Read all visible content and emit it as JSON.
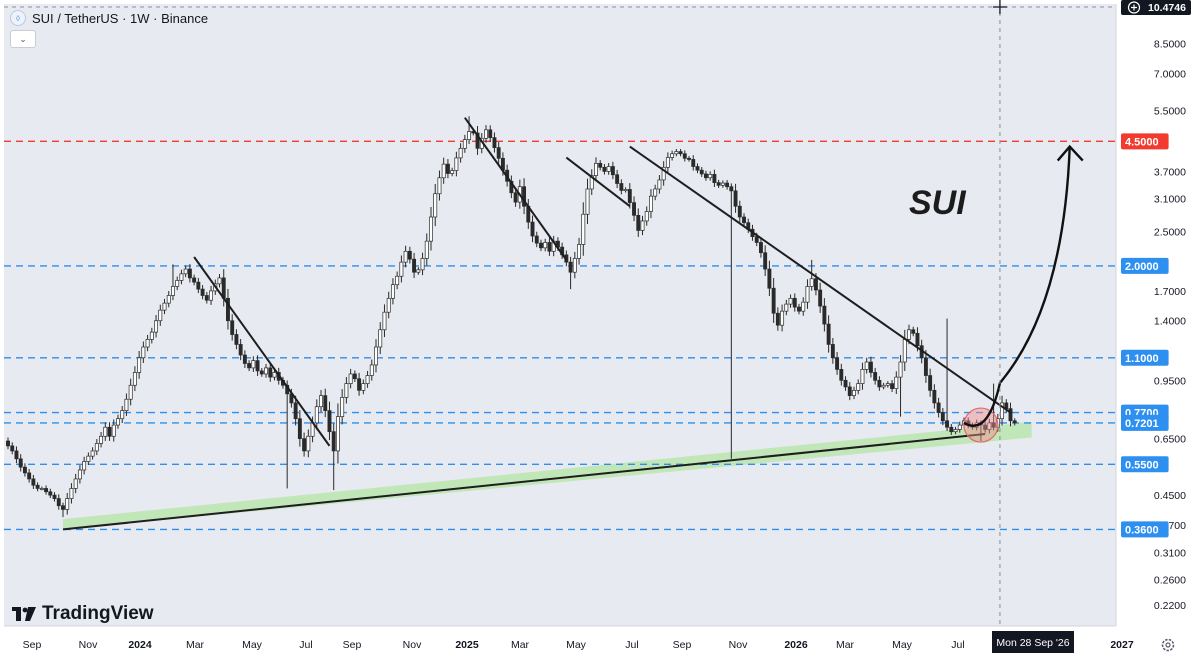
{
  "header": {
    "symbol_line": "SUI / TetherUS · 1W · Binance",
    "collapse_glyph": "⌄"
  },
  "watermark": {
    "brand": "TradingView",
    "logo_glyph": "17"
  },
  "colors": {
    "background": "#e7eaf0",
    "bull_candle_body": "#ffffff",
    "bear_candle_body": "#2a2a2a",
    "wick": "#2a2a2a",
    "blue_level": "#2d8ff0",
    "red_level": "#f23a2e",
    "green_zone": "#bfe6b3",
    "trendline": "#1e1e1e",
    "highlight_circle": "#f28b8b"
  },
  "chart_data": {
    "type": "candlestick",
    "title": "SUI / TetherUS · 1W · Binance",
    "annotation_text": "SUI",
    "y_scale": "log",
    "ylim": [
      0.192,
      11.0
    ],
    "y_ticks": [
      "10.4746",
      "8.5000",
      "7.0000",
      "5.5000",
      "3.7000",
      "3.1000",
      "2.5000",
      "1.7000",
      "1.4000",
      "0.9500",
      "0.6500",
      "0.4500",
      "0.3700",
      "0.3100",
      "0.2600",
      "0.2200"
    ],
    "x_ticks": [
      "Sep",
      "Nov",
      "2024",
      "Mar",
      "May",
      "Jul",
      "Sep",
      "Nov",
      "2025",
      "Mar",
      "May",
      "Jul",
      "Sep",
      "Nov",
      "2026",
      "Mar",
      "May",
      "Jul",
      "Mon 28 Sep '26",
      "2027"
    ],
    "x_tick_bold": [
      "2024",
      "2025",
      "2026",
      "2027"
    ],
    "cursor_x_label": "Mon 28 Sep '26",
    "cursor_y_label": "10.4746",
    "price_levels": [
      {
        "label": "4.5000",
        "value": 4.5,
        "color": "red"
      },
      {
        "label": "2.0000",
        "value": 2.0,
        "color": "blue"
      },
      {
        "label": "1.1000",
        "value": 1.1,
        "color": "blue"
      },
      {
        "label": "0.7700",
        "value": 0.77,
        "color": "blue"
      },
      {
        "label": "0.7201",
        "value": 0.7201,
        "color": "blue"
      },
      {
        "label": "0.5500",
        "value": 0.55,
        "color": "blue"
      },
      {
        "label": "0.3600",
        "value": 0.36,
        "color": "blue"
      }
    ],
    "candle_closes": [
      0.62,
      0.6,
      0.57,
      0.54,
      0.52,
      0.5,
      0.48,
      0.47,
      0.47,
      0.46,
      0.45,
      0.44,
      0.42,
      0.41,
      0.44,
      0.47,
      0.5,
      0.53,
      0.56,
      0.58,
      0.6,
      0.63,
      0.66,
      0.7,
      0.66,
      0.71,
      0.74,
      0.78,
      0.84,
      0.92,
      1.0,
      1.1,
      1.18,
      1.24,
      1.3,
      1.4,
      1.5,
      1.57,
      1.65,
      1.75,
      1.82,
      1.9,
      1.96,
      1.85,
      1.8,
      1.72,
      1.65,
      1.6,
      1.7,
      1.78,
      1.85,
      1.62,
      1.4,
      1.28,
      1.2,
      1.12,
      1.06,
      1.03,
      1.08,
      1.01,
      0.99,
      1.03,
      0.97,
      1.0,
      0.95,
      0.92,
      0.87,
      0.82,
      0.74,
      0.65,
      0.6,
      0.66,
      0.72,
      0.8,
      0.86,
      0.78,
      0.68,
      0.6,
      0.75,
      0.85,
      0.93,
      0.99,
      0.96,
      0.89,
      0.93,
      0.98,
      1.05,
      1.18,
      1.32,
      1.48,
      1.62,
      1.77,
      1.87,
      2.05,
      2.2,
      2.09,
      1.92,
      1.95,
      2.1,
      2.35,
      2.75,
      3.2,
      3.55,
      3.88,
      3.65,
      3.72,
      4.04,
      4.3,
      4.55,
      4.8,
      4.75,
      4.3,
      4.59,
      4.85,
      4.61,
      4.32,
      4.03,
      3.73,
      3.47,
      3.22,
      3.03,
      3.35,
      2.95,
      2.66,
      2.43,
      2.32,
      2.25,
      2.33,
      2.2,
      2.35,
      2.26,
      2.15,
      2.05,
      1.92,
      2.1,
      2.3,
      2.8,
      3.3,
      3.6,
      3.9,
      3.8,
      3.7,
      3.82,
      3.62,
      3.42,
      3.27,
      3.29,
      3.02,
      2.78,
      2.52,
      2.68,
      2.85,
      3.15,
      3.3,
      3.5,
      3.8,
      4.05,
      4.15,
      4.21,
      4.15,
      4.03,
      4.0,
      3.82,
      3.73,
      3.64,
      3.55,
      3.63,
      3.44,
      3.38,
      3.43,
      3.35,
      3.26,
      2.95,
      2.75,
      2.65,
      2.54,
      2.42,
      2.33,
      2.18,
      1.96,
      1.73,
      1.47,
      1.36,
      1.49,
      1.56,
      1.62,
      1.53,
      1.49,
      1.58,
      1.75,
      1.84,
      1.71,
      1.54,
      1.37,
      1.2,
      1.1,
      1.02,
      0.95,
      0.91,
      0.86,
      0.89,
      0.93,
      1.02,
      1.07,
      1.0,
      0.95,
      0.91,
      0.92,
      0.93,
      0.9,
      0.97,
      1.07,
      1.24,
      1.32,
      1.29,
      1.19,
      1.1,
      0.98,
      0.89,
      0.82,
      0.77,
      0.73,
      0.7,
      0.68,
      0.69,
      0.71,
      0.73,
      0.71,
      0.7,
      0.72,
      0.71,
      0.69,
      0.72,
      0.7,
      0.74,
      0.82,
      0.79,
      0.73,
      0.72
    ],
    "trendlines": [
      {
        "from": {
          "week": 13,
          "price": 0.36
        },
        "to": {
          "week": 231,
          "price": 0.67
        }
      },
      {
        "from": {
          "week": 44,
          "price": 2.12
        },
        "to": {
          "week": 76,
          "price": 0.62
        }
      },
      {
        "from": {
          "week": 108,
          "price": 5.25
        },
        "to": {
          "week": 132,
          "price": 2.08
        }
      },
      {
        "from": {
          "week": 132,
          "price": 4.05
        },
        "to": {
          "week": 147,
          "price": 2.95
        }
      },
      {
        "from": {
          "week": 147,
          "price": 4.35
        },
        "to": {
          "week": 237,
          "price": 0.77
        }
      }
    ],
    "support_zone": {
      "from": {
        "week": 13,
        "low": 0.36,
        "high": 0.385
      },
      "to": {
        "week": 242,
        "low": 0.655,
        "high": 0.725
      }
    },
    "projection_arrow": {
      "start": {
        "week": 226,
        "price": 0.72
      },
      "target": {
        "week": 251,
        "price": 4.35
      }
    },
    "highlight_circle_center": {
      "week": 230,
      "price": 0.71
    }
  }
}
